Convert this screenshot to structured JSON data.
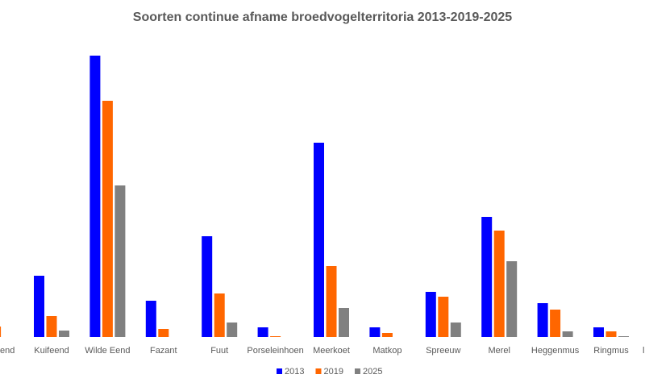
{
  "chart_data": {
    "type": "bar",
    "title": "Soorten continue afname broedvogelterritoria 2013-2019-2025",
    "categories": [
      "end",
      "Kuifeend",
      "Wilde Eend",
      "Fazant",
      "Fuut",
      "Porseleinhoen",
      "Meerkoet",
      "Matkop",
      "Spreeuw",
      "Merel",
      "Heggenmus",
      "Ringmus",
      "l"
    ],
    "series": [
      {
        "name": "2013",
        "color": "#0000ff",
        "values": [
          null,
          76,
          349,
          45,
          125,
          12,
          241,
          12,
          56,
          149,
          42,
          12,
          null
        ]
      },
      {
        "name": "2019",
        "color": "#ff6600",
        "values": [
          13,
          26,
          293,
          10,
          54,
          1,
          88,
          5,
          50,
          132,
          34,
          7,
          null
        ]
      },
      {
        "name": "2025",
        "color": "#808080",
        "values": [
          null,
          8,
          188,
          0,
          18,
          0,
          36,
          0,
          18,
          94,
          7,
          1,
          null
        ]
      }
    ],
    "ylim": [
      0,
      349
    ],
    "legend": "bottom"
  }
}
